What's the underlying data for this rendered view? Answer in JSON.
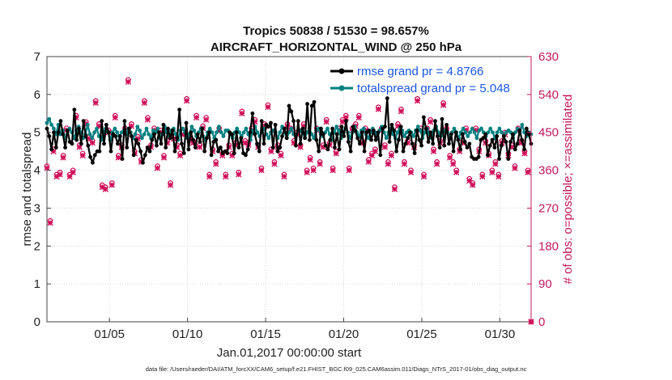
{
  "chart_data": {
    "type": "line",
    "title_line1": "Tropics 50838 / 51530 = 98.657%",
    "title_line2": "AIRCRAFT_HORIZONTAL_WIND @ 250 hPa",
    "ylabel_left": "rmse and totalspread",
    "ylabel_right": "# of obs: o=possible; ×=assimilated",
    "xlabel": "Jan.01,2017 00:00:00 start",
    "footnote": "data file: /Users/raeder/DAI/ATM_forcXX/CAM6_setup/f.e21.FHIST_BGC.f09_025.CAM6assim.011/Diags_NTrS_2017-01/obs_diag_output.nc",
    "xlim": [
      1,
      32
    ],
    "ylim_left": [
      0,
      7
    ],
    "ylim_right": [
      0,
      630
    ],
    "x_ticks": [
      5,
      10,
      15,
      20,
      25,
      30
    ],
    "x_tick_labels": [
      "01/05",
      "01/10",
      "01/15",
      "01/20",
      "01/25",
      "01/30"
    ],
    "y_ticks_left": [
      "0",
      "1",
      "2",
      "3",
      "4",
      "5",
      "6",
      "7"
    ],
    "y_ticks_right": [
      "0",
      "90",
      "180",
      "270",
      "360",
      "450",
      "540",
      "630"
    ],
    "legend": {
      "position": "top-right",
      "entries": [
        "rmse grand pr = 4.8766",
        "totalspread grand pr = 5.048"
      ]
    },
    "colors": {
      "rmse": "#000000",
      "totalspread": "#008080",
      "obs": "#d0105a"
    },
    "series": [
      {
        "name": "rmse",
        "values": [
          5.1,
          4.9,
          4.55,
          5.0,
          4.6,
          5.0,
          5.3,
          4.95,
          4.6,
          5.05,
          4.75,
          4.7,
          5.6,
          4.8,
          5.1,
          4.7,
          5.3,
          4.9,
          4.65,
          4.35,
          4.2,
          4.4,
          4.5,
          4.5,
          5.3,
          4.7,
          5.2,
          5.0,
          4.5,
          4.95,
          4.9,
          4.7,
          4.9,
          4.3,
          5.3,
          4.6,
          5.1,
          4.9,
          4.4,
          4.8,
          4.7,
          4.5,
          4.2,
          4.4,
          4.6,
          4.5,
          4.8,
          4.95,
          4.65,
          5.0,
          4.7,
          5.2,
          4.6,
          5.1,
          4.85,
          5.05,
          4.5,
          4.85,
          5.6,
          4.7,
          4.45,
          5.25,
          4.55,
          5.0,
          4.8,
          4.6,
          4.95,
          4.75,
          5.1,
          4.5,
          4.85,
          5.0,
          4.4,
          4.75,
          4.8,
          4.5,
          4.6,
          4.45,
          4.5,
          4.45,
          5.0,
          4.95,
          4.45,
          5.0,
          4.6,
          4.85,
          4.45,
          4.4,
          4.55,
          5.0,
          5.5,
          4.95,
          4.7,
          4.5,
          5.3,
          4.7,
          5.2,
          5.15,
          5.25,
          4.6,
          5.2,
          4.5,
          4.6,
          4.9,
          5.1,
          4.85,
          5.7,
          5.55,
          5.3,
          4.65,
          5.3,
          4.7,
          5.1,
          4.85,
          5.75,
          4.8,
          5.7,
          5.8,
          4.8,
          4.5,
          5.1,
          4.95,
          4.65,
          4.55,
          4.8,
          5.1,
          4.6,
          4.95,
          4.55,
          5.15,
          4.9,
          5.3,
          4.75,
          4.5,
          5.15,
          5.05,
          4.85,
          4.7,
          5.0,
          4.5,
          5.0,
          5.05,
          4.8,
          5.05,
          4.8,
          5.0,
          4.4,
          5.1,
          5.15,
          5.9,
          4.75,
          5.2,
          5.05,
          4.5,
          4.8,
          5.15,
          4.5,
          4.7,
          4.85,
          5.0,
          4.7,
          4.45,
          5.05,
          4.8,
          4.65,
          5.4,
          5.1,
          4.75,
          5.0,
          4.7,
          5.3,
          4.9,
          4.6,
          5.35,
          4.65,
          5.2,
          4.7,
          4.95,
          4.5,
          5.0,
          4.8,
          4.55,
          4.95,
          4.75,
          4.6,
          4.7,
          4.35,
          4.3,
          4.3,
          4.35,
          4.8,
          4.85,
          4.95,
          4.4,
          4.65,
          4.8,
          4.6,
          4.9,
          4.3,
          4.65,
          4.9,
          4.75,
          4.3,
          4.75,
          4.95,
          4.55,
          4.7,
          5.05,
          4.8,
          4.55,
          5.1,
          4.95,
          4.7
        ]
      },
      {
        "name": "totalspread",
        "values": [
          5.25,
          5.35,
          5.2,
          5.1,
          4.95,
          5.2,
          4.95,
          5.05,
          4.85,
          4.95,
          5.1,
          5.0,
          4.85,
          5.05,
          5.15,
          5.0,
          4.85,
          4.95,
          5.2,
          4.95,
          4.85,
          5.0,
          5.1,
          4.9,
          4.8,
          5.0,
          5.1,
          5.0,
          4.8,
          5.0,
          5.1,
          5.0,
          4.9,
          5.0,
          5.05,
          4.95,
          5.1,
          5.0,
          4.85,
          4.95,
          5.15,
          5.05,
          4.85,
          4.95,
          5.1,
          4.95,
          4.85,
          5.05,
          5.0,
          5.1,
          4.85,
          4.95,
          5.15,
          5.0,
          4.9,
          5.05,
          5.1,
          4.95,
          4.8,
          5.05,
          5.1,
          5.0,
          4.85,
          4.95,
          5.15,
          5.05,
          4.9,
          5.0,
          5.1,
          4.9,
          4.8,
          5.0,
          5.1,
          5.0,
          4.85,
          5.0,
          5.15,
          5.0,
          4.9,
          5.05,
          5.05,
          4.95,
          4.85,
          5.0,
          5.1,
          5.0,
          4.9,
          5.0,
          5.1,
          4.95,
          4.8,
          5.05,
          5.15,
          5.0,
          4.9,
          5.0,
          5.1,
          4.95,
          4.85,
          5.0,
          5.05,
          5.0,
          4.85,
          5.0,
          5.15,
          5.0,
          4.85,
          5.0,
          5.1,
          4.95,
          4.9,
          5.05,
          5.05,
          5.0,
          4.85,
          5.0,
          5.1,
          4.95,
          4.85,
          5.05,
          5.1,
          4.95,
          4.9,
          5.0,
          5.1,
          4.95,
          4.8,
          5.0,
          5.15,
          5.05,
          4.85,
          5.0,
          5.1,
          5.0,
          4.85,
          5.0,
          5.15,
          5.0,
          4.9,
          5.05,
          5.1,
          4.95,
          4.85,
          5.0,
          5.1,
          5.0,
          4.85,
          5.05,
          5.15,
          5.0,
          4.85,
          5.0,
          5.1,
          4.95,
          4.85,
          5.0,
          5.1,
          5.05,
          4.9,
          5.0,
          5.05,
          5.0,
          4.9,
          5.05,
          5.15,
          5.05,
          4.85,
          5.0,
          5.1,
          4.95,
          4.85,
          5.05,
          5.15,
          5.0,
          4.9,
          5.0,
          5.05,
          5.0,
          4.85,
          5.0,
          5.1,
          5.0,
          4.85,
          5.0,
          5.1,
          5.0,
          4.9,
          5.0,
          5.1,
          5.0,
          4.85,
          5.05,
          5.1,
          5.0,
          4.9,
          5.0,
          5.1,
          5.0,
          4.85,
          5.0,
          5.1,
          5.0,
          4.9,
          5.0,
          5.05,
          5.0,
          4.85,
          5.0,
          5.1,
          5.0,
          5.2,
          5.0,
          4.9,
          5.0,
          4.95
        ]
      },
      {
        "name": "obs_possible",
        "values": [
          370,
          240,
          410,
          350,
          355,
          395,
          460,
          350,
          360,
          490,
          420,
          400,
          475,
          440,
          430,
          525,
          470,
          325,
          320,
          455,
          330,
          490,
          395,
          420,
          460,
          575,
          470,
          405,
          440,
          385,
          525,
          485,
          420,
          460,
          370,
          455,
          395,
          430,
          330,
          440,
          420,
          400,
          450,
          530,
          440,
          430,
          490,
          420,
          465,
          485,
          350,
          410,
          380,
          460,
          400,
          350,
          420,
          400,
          425,
          355,
          500,
          430,
          425,
          460,
          480,
          420,
          365,
          470,
          515,
          410,
          380,
          420,
          400,
          350,
          470,
          460,
          430,
          450,
          420,
          470,
          360,
          390,
          365,
          460,
          380,
          420,
          480,
          425,
          365,
          405,
          460,
          480,
          490,
          365,
          460,
          470,
          490,
          430,
          460,
          385,
          400,
          410,
          510,
          460,
          420,
          380,
          400,
          320,
          470,
          505,
          380,
          430,
          360,
          420,
          530,
          460,
          350,
          460,
          480,
          410,
          380,
          430,
          520,
          460,
          395,
          380,
          360,
          410,
          430,
          460,
          340,
          330,
          460,
          410,
          350,
          430,
          400,
          360,
          380,
          350,
          430,
          450,
          400,
          420,
          370,
          460,
          430,
          405,
          360,
          0
        ]
      },
      {
        "name": "obs_assimilated",
        "values": [
          365,
          235,
          405,
          345,
          350,
          390,
          455,
          345,
          355,
          485,
          415,
          395,
          470,
          435,
          425,
          520,
          465,
          320,
          315,
          450,
          325,
          485,
          390,
          415,
          455,
          570,
          465,
          400,
          435,
          380,
          520,
          480,
          415,
          455,
          365,
          450,
          390,
          425,
          325,
          435,
          415,
          395,
          445,
          525,
          435,
          425,
          485,
          415,
          460,
          480,
          345,
          405,
          375,
          455,
          395,
          345,
          415,
          395,
          420,
          350,
          495,
          425,
          420,
          455,
          475,
          415,
          360,
          465,
          510,
          405,
          375,
          415,
          395,
          345,
          465,
          455,
          425,
          445,
          415,
          465,
          355,
          385,
          360,
          455,
          375,
          415,
          475,
          420,
          360,
          400,
          455,
          475,
          485,
          360,
          455,
          465,
          485,
          425,
          455,
          380,
          395,
          405,
          505,
          455,
          415,
          375,
          395,
          315,
          465,
          500,
          375,
          425,
          355,
          415,
          525,
          455,
          345,
          455,
          475,
          405,
          375,
          425,
          515,
          455,
          390,
          375,
          355,
          405,
          425,
          455,
          335,
          325,
          455,
          405,
          345,
          425,
          395,
          355,
          375,
          345,
          425,
          445,
          395,
          415,
          365,
          455,
          425,
          400,
          355,
          0
        ]
      }
    ]
  }
}
